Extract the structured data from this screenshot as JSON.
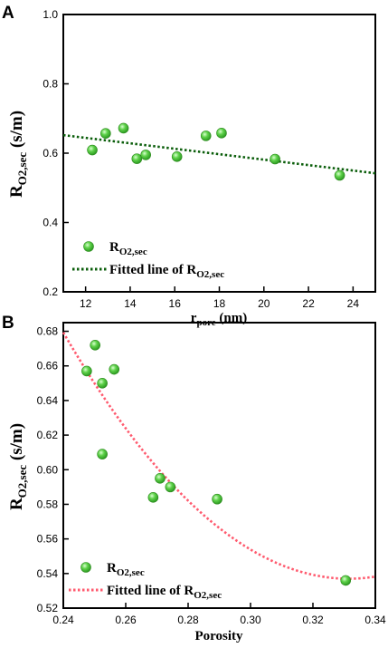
{
  "colors": {
    "marker_fill": "#4fc73a",
    "marker_edge": "#2e8b1f",
    "fit_line_a": "#0b5e0b",
    "fit_line_b": "#ff5a6e"
  },
  "chart_data": [
    {
      "type": "scatter",
      "panel_label": "A",
      "xlabel": "r",
      "xlabel_sub": "pore",
      "xlabel_unit": " (nm)",
      "ylabel": "R",
      "ylabel_sub": "O2,sec",
      "ylabel_unit": " (s/m)",
      "xlim": [
        11,
        25
      ],
      "ylim": [
        0.2,
        1.0
      ],
      "xticks": [
        12,
        14,
        16,
        18,
        20,
        22,
        24
      ],
      "yticks": [
        0.2,
        0.4,
        0.6,
        0.8,
        1.0
      ],
      "ytick_labels": [
        "0.2",
        "0.4",
        "0.6",
        "0.8",
        "1.0"
      ],
      "points": [
        {
          "x": 12.3,
          "y": 0.609
        },
        {
          "x": 12.9,
          "y": 0.657
        },
        {
          "x": 13.7,
          "y": 0.672
        },
        {
          "x": 14.3,
          "y": 0.584
        },
        {
          "x": 14.7,
          "y": 0.595
        },
        {
          "x": 16.1,
          "y": 0.59
        },
        {
          "x": 17.4,
          "y": 0.65
        },
        {
          "x": 18.1,
          "y": 0.658
        },
        {
          "x": 20.5,
          "y": 0.583
        },
        {
          "x": 23.4,
          "y": 0.536
        }
      ],
      "fit": {
        "type": "linear",
        "x": [
          11.0,
          25.0
        ],
        "y": [
          0.652,
          0.542
        ]
      },
      "legend": {
        "position": "bottom-left",
        "scatter_label": "R",
        "scatter_label_sub": "O2,sec",
        "fit_label": "Fitted line of R",
        "fit_label_sub": "O2,sec"
      }
    },
    {
      "type": "scatter",
      "panel_label": "B",
      "xlabel": "Porosity",
      "ylabel": "R",
      "ylabel_sub": "O2,sec",
      "ylabel_unit": " (s/m)",
      "xlim": [
        0.24,
        0.34
      ],
      "ylim": [
        0.52,
        0.685
      ],
      "xticks": [
        0.24,
        0.26,
        0.28,
        0.3,
        0.32,
        0.34
      ],
      "xtick_labels": [
        "0.24",
        "0.26",
        "0.28",
        "0.30",
        "0.32",
        "0.34"
      ],
      "yticks": [
        0.52,
        0.54,
        0.56,
        0.58,
        0.6,
        0.62,
        0.64,
        0.66,
        0.68
      ],
      "ytick_labels": [
        "0.52",
        "0.54",
        "0.56",
        "0.58",
        "0.60",
        "0.62",
        "0.64",
        "0.66",
        "0.68"
      ],
      "points": [
        {
          "x": 0.2475,
          "y": 0.657
        },
        {
          "x": 0.2502,
          "y": 0.672
        },
        {
          "x": 0.2525,
          "y": 0.65
        },
        {
          "x": 0.2525,
          "y": 0.609
        },
        {
          "x": 0.2563,
          "y": 0.658
        },
        {
          "x": 0.2688,
          "y": 0.584
        },
        {
          "x": 0.271,
          "y": 0.595
        },
        {
          "x": 0.2743,
          "y": 0.59
        },
        {
          "x": 0.2893,
          "y": 0.583
        },
        {
          "x": 0.3305,
          "y": 0.536
        }
      ],
      "fit": {
        "type": "quadratic",
        "vertex_x": 0.3315,
        "vertex_y": 0.537,
        "a": 17.0
      },
      "legend": {
        "position": "bottom-left",
        "scatter_label": "R",
        "scatter_label_sub": "O2,sec",
        "fit_label": "Fitted line of R",
        "fit_label_sub": "O2,sec"
      }
    }
  ]
}
